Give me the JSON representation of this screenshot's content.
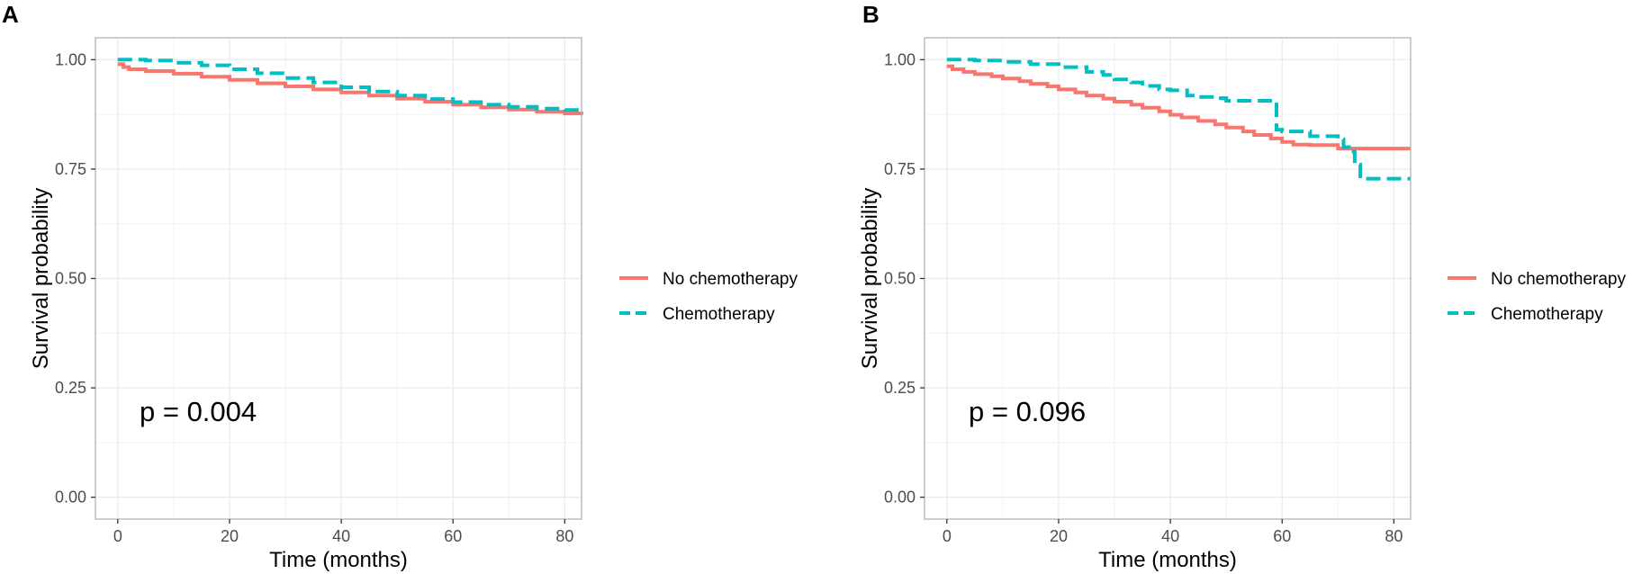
{
  "chart_data": [
    {
      "type": "line",
      "subtype": "kaplan-meier step",
      "panel": "A",
      "title": "",
      "xlabel": "Time (months)",
      "ylabel": "Survival probability",
      "xlim": [
        -4,
        83
      ],
      "ylim": [
        -0.05,
        1.05
      ],
      "xticks": [
        0,
        20,
        40,
        60,
        80
      ],
      "xtick_labels": [
        "0",
        "20",
        "40",
        "60",
        "80"
      ],
      "yticks": [
        0,
        0.25,
        0.5,
        0.75,
        1
      ],
      "ytick_labels": [
        "0.00",
        "0.25",
        "0.50",
        "0.75",
        "1.00"
      ],
      "grid": true,
      "legend_position": "right",
      "annotation": "p = 0.004",
      "series": [
        {
          "name": "No chemotherapy",
          "color": "#F8766D",
          "dash": "solid",
          "x": [
            0,
            1,
            2,
            5,
            10,
            15,
            20,
            25,
            30,
            35,
            40,
            45,
            50,
            55,
            60,
            65,
            70,
            75,
            80,
            83
          ],
          "y": [
            0.99,
            0.983,
            0.978,
            0.974,
            0.968,
            0.961,
            0.954,
            0.946,
            0.939,
            0.932,
            0.925,
            0.918,
            0.911,
            0.904,
            0.897,
            0.891,
            0.886,
            0.881,
            0.877,
            0.874
          ]
        },
        {
          "name": "Chemotherapy",
          "color": "#00BFC4",
          "dash": "dashed",
          "x": [
            0,
            5,
            10,
            15,
            20,
            25,
            30,
            35,
            40,
            45,
            50,
            55,
            60,
            65,
            70,
            75,
            80,
            83
          ],
          "y": [
            1.0,
            0.998,
            0.993,
            0.987,
            0.978,
            0.969,
            0.958,
            0.948,
            0.937,
            0.927,
            0.918,
            0.91,
            0.903,
            0.897,
            0.892,
            0.888,
            0.885,
            0.883
          ]
        }
      ]
    },
    {
      "type": "line",
      "subtype": "kaplan-meier step",
      "panel": "B",
      "title": "",
      "xlabel": "Time (months)",
      "ylabel": "Survival probability",
      "xlim": [
        -4,
        83
      ],
      "ylim": [
        -0.05,
        1.05
      ],
      "xticks": [
        0,
        20,
        40,
        60,
        80
      ],
      "xtick_labels": [
        "0",
        "20",
        "40",
        "60",
        "80"
      ],
      "yticks": [
        0,
        0.25,
        0.5,
        0.75,
        1
      ],
      "ytick_labels": [
        "0.00",
        "0.25",
        "0.50",
        "0.75",
        "1.00"
      ],
      "grid": true,
      "legend_position": "right",
      "annotation": "p = 0.096",
      "series": [
        {
          "name": "No chemotherapy",
          "color": "#F8766D",
          "dash": "solid",
          "x": [
            0,
            1,
            3,
            5,
            8,
            10,
            13,
            15,
            18,
            20,
            23,
            25,
            28,
            30,
            33,
            35,
            38,
            40,
            42,
            45,
            48,
            50,
            53,
            55,
            58,
            60,
            62,
            65,
            68,
            70,
            75,
            80,
            83
          ],
          "y": [
            0.985,
            0.978,
            0.972,
            0.967,
            0.962,
            0.957,
            0.951,
            0.945,
            0.939,
            0.932,
            0.925,
            0.918,
            0.911,
            0.904,
            0.897,
            0.89,
            0.882,
            0.874,
            0.868,
            0.86,
            0.852,
            0.845,
            0.836,
            0.828,
            0.82,
            0.812,
            0.806,
            0.805,
            0.805,
            0.797,
            0.797,
            0.797,
            0.797
          ]
        },
        {
          "name": "Chemotherapy",
          "color": "#00BFC4",
          "dash": "dashed",
          "x": [
            0,
            5,
            10,
            15,
            20,
            25,
            28,
            30,
            33,
            35,
            38,
            40,
            43,
            45,
            48,
            50,
            55,
            59,
            60,
            65,
            70,
            71,
            72,
            73,
            74,
            78,
            83
          ],
          "y": [
            1.0,
            0.998,
            0.995,
            0.99,
            0.983,
            0.972,
            0.965,
            0.955,
            0.948,
            0.94,
            0.932,
            0.93,
            0.918,
            0.915,
            0.912,
            0.906,
            0.906,
            0.84,
            0.836,
            0.825,
            0.818,
            0.8,
            0.79,
            0.76,
            0.728,
            0.728,
            0.728
          ]
        }
      ]
    }
  ]
}
